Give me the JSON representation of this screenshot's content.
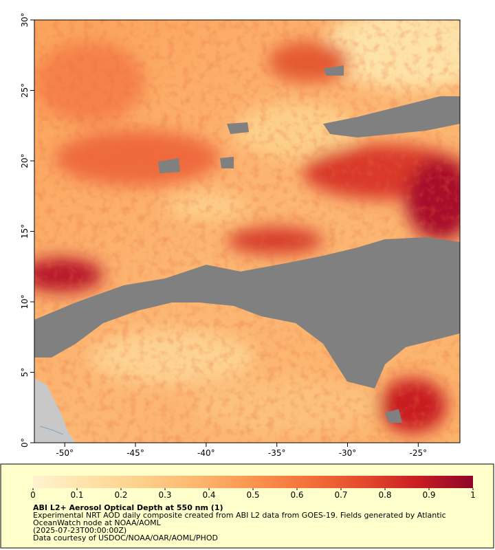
{
  "map": {
    "xlim": [
      -52.15,
      -22.05
    ],
    "ylim": [
      0,
      30
    ],
    "xticks": [
      {
        "value": -50,
        "label": "-50°"
      },
      {
        "value": -45,
        "label": "-45°"
      },
      {
        "value": -40,
        "label": "-40°"
      },
      {
        "value": -35,
        "label": "-35°"
      },
      {
        "value": -30,
        "label": "-30°"
      },
      {
        "value": -25,
        "label": "-25°"
      }
    ],
    "yticks": [
      {
        "value": 0,
        "label": "0°"
      },
      {
        "value": 5,
        "label": "5°"
      },
      {
        "value": 10,
        "label": "10°"
      },
      {
        "value": 15,
        "label": "15°"
      },
      {
        "value": 20,
        "label": "20°"
      },
      {
        "value": 25,
        "label": "25°"
      },
      {
        "value": 30,
        "label": "30°"
      }
    ]
  },
  "colorbar": {
    "range": [
      0,
      1
    ],
    "ticks": [
      0,
      0.1,
      0.2,
      0.3,
      0.4,
      0.5,
      0.6,
      0.7,
      0.8,
      0.9,
      1
    ],
    "colors": [
      "#fff3d0",
      "#fee2a8",
      "#fdcf8a",
      "#fdb66e",
      "#fb9450",
      "#f4713a",
      "#e44a2c",
      "#c81d22",
      "#8e0528"
    ]
  },
  "legend": {
    "title": "ABI L2+ Aerosol Optical Depth at 550 nm (1)",
    "lines": [
      "Experimental NRT AOD daily composite created from ABI L2 data from GOES-19. Fields generated by Atlantic",
      "OceanWatch node at NOAA/AOML",
      "(2025-07-23T00:00:00Z)",
      "Data courtesy of USDOC/NOAA/OAR/AOML/PHOD"
    ]
  }
}
